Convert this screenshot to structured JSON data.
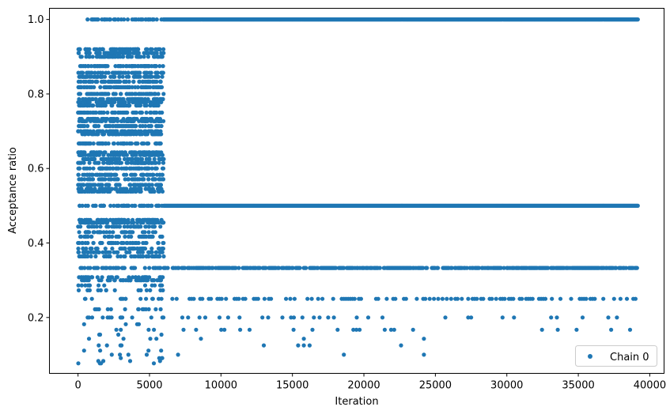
{
  "chart_data": {
    "type": "scatter",
    "title": "",
    "xlabel": "Iteration",
    "ylabel": "Acceptance ratio",
    "xlim": [
      -2000,
      41000
    ],
    "ylim": [
      0.05,
      1.03
    ],
    "xticks": [
      0,
      5000,
      10000,
      15000,
      20000,
      25000,
      30000,
      35000,
      40000
    ],
    "xtick_labels": [
      "0",
      "5000",
      "10000",
      "15000",
      "20000",
      "25000",
      "30000",
      "35000",
      "40000"
    ],
    "yticks": [
      0.2,
      0.4,
      0.6,
      0.8,
      1.0
    ],
    "ytick_labels": [
      "0.2",
      "0.4",
      "0.6",
      "0.8",
      "1.0"
    ],
    "grid": false,
    "legend": {
      "position": "bottom-right",
      "entries": [
        {
          "label": "Chain 0",
          "color": "#1f77b4"
        }
      ]
    },
    "series": [
      {
        "name": "Chain 0",
        "color": "#1f77b4",
        "marker": "circle",
        "x_range": [
          0,
          39200
        ],
        "burnin_end": 6000,
        "levels_early": [
          1.0,
          0.92,
          0.91,
          0.9,
          0.875,
          0.857,
          0.846,
          0.833,
          0.818,
          0.8,
          0.786,
          0.778,
          0.769,
          0.75,
          0.733,
          0.727,
          0.714,
          0.7,
          0.692,
          0.667,
          0.643,
          0.636,
          0.625,
          0.615,
          0.6,
          0.583,
          0.571,
          0.556,
          0.545,
          0.538,
          0.5,
          0.462,
          0.455,
          0.444,
          0.429,
          0.417,
          0.4,
          0.385,
          0.375,
          0.364,
          0.333,
          0.308,
          0.3,
          0.286,
          0.273,
          0.25,
          0.222,
          0.2,
          0.182,
          0.167,
          0.154,
          0.143,
          0.125,
          0.111,
          0.1,
          0.091,
          0.083,
          0.077
        ],
        "levels_late": [
          1.0,
          0.5,
          0.333,
          0.25,
          0.2,
          0.167,
          0.143,
          0.125,
          0.1
        ]
      }
    ]
  }
}
